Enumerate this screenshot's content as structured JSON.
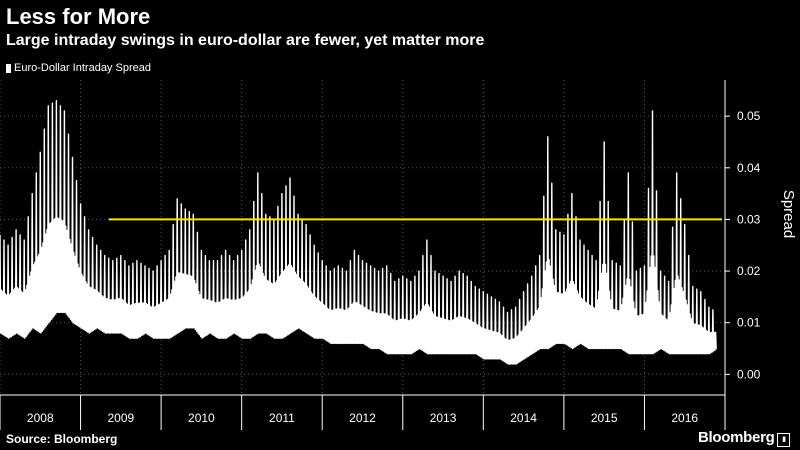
{
  "header": {
    "title": "Less for More",
    "subtitle": "Large intraday swings in euro-dollar are fewer, yet matter more"
  },
  "footer": {
    "source": "Source: Bloomberg",
    "brand": "Bloomberg"
  },
  "colors": {
    "background": "#000000",
    "series": "#ffffff",
    "threshold": "#ffe600",
    "grid": "#555555",
    "axis": "#ffffff"
  },
  "chart_data": {
    "type": "line",
    "title": "Less for More",
    "subtitle": "Large intraday swings in euro-dollar are fewer, yet matter more",
    "xlabel": "",
    "ylabel": "Spread",
    "xlim": [
      2008.0,
      2017.0
    ],
    "ylim": [
      -0.004,
      0.057
    ],
    "x_ticks": [
      "2008",
      "2009",
      "2010",
      "2011",
      "2012",
      "2013",
      "2014",
      "2015",
      "2016"
    ],
    "y_ticks": [
      0.0,
      0.01,
      0.02,
      0.03,
      0.04,
      0.05
    ],
    "y_tick_labels": [
      "0.00",
      "0.01",
      "0.02",
      "0.03",
      "0.04",
      "0.05"
    ],
    "grid": "dotted",
    "legend": "top-left",
    "series": [
      {
        "name": "Euro-Dollar Intraday Spread",
        "x": [
          2008.0,
          2008.1,
          2008.2,
          2008.3,
          2008.4,
          2008.5,
          2008.6,
          2008.7,
          2008.8,
          2008.9,
          2009.0,
          2009.1,
          2009.2,
          2009.3,
          2009.4,
          2009.5,
          2009.6,
          2009.7,
          2009.8,
          2009.9,
          2010.0,
          2010.1,
          2010.2,
          2010.3,
          2010.4,
          2010.5,
          2010.6,
          2010.7,
          2010.8,
          2010.9,
          2011.0,
          2011.1,
          2011.2,
          2011.3,
          2011.4,
          2011.5,
          2011.6,
          2011.7,
          2011.8,
          2011.9,
          2012.0,
          2012.1,
          2012.2,
          2012.3,
          2012.4,
          2012.5,
          2012.6,
          2012.7,
          2012.8,
          2012.9,
          2013.0,
          2013.1,
          2013.2,
          2013.3,
          2013.4,
          2013.5,
          2013.6,
          2013.7,
          2013.8,
          2013.9,
          2014.0,
          2014.1,
          2014.2,
          2014.3,
          2014.4,
          2014.5,
          2014.6,
          2014.7,
          2014.8,
          2014.9,
          2015.0,
          2015.1,
          2015.2,
          2015.3,
          2015.4,
          2015.5,
          2015.6,
          2015.7,
          2015.8,
          2015.9,
          2016.0,
          2016.1,
          2016.2,
          2016.3,
          2016.4,
          2016.5,
          2016.6,
          2016.7,
          2016.8,
          2016.9
        ],
        "low": [
          0.008,
          0.007,
          0.008,
          0.007,
          0.009,
          0.008,
          0.01,
          0.012,
          0.012,
          0.01,
          0.009,
          0.008,
          0.009,
          0.008,
          0.008,
          0.008,
          0.007,
          0.007,
          0.008,
          0.007,
          0.007,
          0.007,
          0.008,
          0.009,
          0.009,
          0.007,
          0.008,
          0.007,
          0.007,
          0.008,
          0.007,
          0.007,
          0.008,
          0.008,
          0.007,
          0.007,
          0.008,
          0.009,
          0.008,
          0.007,
          0.007,
          0.006,
          0.006,
          0.006,
          0.006,
          0.006,
          0.005,
          0.005,
          0.004,
          0.004,
          0.004,
          0.004,
          0.005,
          0.004,
          0.004,
          0.004,
          0.004,
          0.004,
          0.004,
          0.004,
          0.003,
          0.003,
          0.003,
          0.002,
          0.002,
          0.003,
          0.004,
          0.005,
          0.005,
          0.006,
          0.006,
          0.005,
          0.006,
          0.005,
          0.005,
          0.005,
          0.005,
          0.005,
          0.004,
          0.004,
          0.004,
          0.004,
          0.005,
          0.004,
          0.004,
          0.004,
          0.004,
          0.004,
          0.004,
          0.005
        ],
        "high": [
          0.027,
          0.025,
          0.028,
          0.026,
          0.035,
          0.043,
          0.052,
          0.053,
          0.051,
          0.042,
          0.033,
          0.028,
          0.025,
          0.023,
          0.022,
          0.023,
          0.021,
          0.022,
          0.021,
          0.02,
          0.022,
          0.024,
          0.034,
          0.032,
          0.031,
          0.024,
          0.022,
          0.022,
          0.024,
          0.022,
          0.024,
          0.028,
          0.039,
          0.031,
          0.03,
          0.035,
          0.038,
          0.031,
          0.029,
          0.025,
          0.022,
          0.02,
          0.021,
          0.02,
          0.024,
          0.022,
          0.021,
          0.02,
          0.021,
          0.018,
          0.019,
          0.018,
          0.02,
          0.026,
          0.02,
          0.019,
          0.018,
          0.02,
          0.019,
          0.017,
          0.016,
          0.015,
          0.014,
          0.012,
          0.013,
          0.016,
          0.019,
          0.023,
          0.046,
          0.028,
          0.027,
          0.035,
          0.026,
          0.024,
          0.022,
          0.045,
          0.022,
          0.021,
          0.039,
          0.02,
          0.021,
          0.051,
          0.02,
          0.018,
          0.039,
          0.029,
          0.017,
          0.016,
          0.013,
          0.012
        ]
      },
      {
        "name": "",
        "type": "threshold",
        "x": [
          2009.35,
          2017.0
        ],
        "values": [
          0.03,
          0.03
        ]
      }
    ]
  }
}
